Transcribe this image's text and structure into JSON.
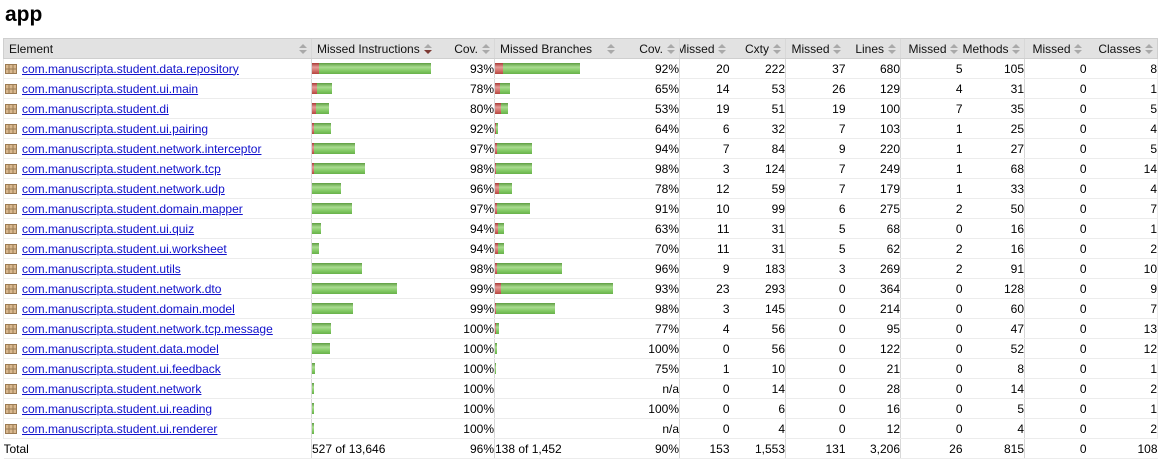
{
  "title": "app",
  "colors": {
    "bar_green": "#7cc95e",
    "bar_red": "#c04a43",
    "link_blue": "#1111cc",
    "header_bg": "#e2e2e2",
    "sort_active_arrow": "#7d3a34"
  },
  "icons": {
    "package": "package-grid-icon",
    "sort": "sort-arrows-icon"
  },
  "table": {
    "headers": [
      {
        "label": "Element",
        "sort": "both"
      },
      {
        "label": "Missed Instructions",
        "sort": "down-active"
      },
      {
        "label": "Cov.",
        "sort": "both"
      },
      {
        "label": "Missed Branches",
        "sort": "both"
      },
      {
        "label": "Cov.",
        "sort": "both"
      },
      {
        "label": "Missed",
        "sort": "both"
      },
      {
        "label": "Cxty",
        "sort": "both"
      },
      {
        "label": "Missed",
        "sort": "both"
      },
      {
        "label": "Lines",
        "sort": "both"
      },
      {
        "label": "Missed",
        "sort": "both"
      },
      {
        "label": "Methods",
        "sort": "both"
      },
      {
        "label": "Missed",
        "sort": "both"
      },
      {
        "label": "Classes",
        "sort": "both"
      }
    ],
    "rows": [
      {
        "name": "com.manuscripta.student.data.repository",
        "instr_bar": {
          "red": 7,
          "green": 112
        },
        "instr_cov": "93%",
        "branch_bar": {
          "red": 8,
          "green": 77
        },
        "branch_cov": "92%",
        "missed_cxty": "20",
        "cxty": "222",
        "missed_lines": "37",
        "lines": "680",
        "missed_methods": "5",
        "methods": "105",
        "missed_classes": "0",
        "classes": "8"
      },
      {
        "name": "com.manuscripta.student.ui.main",
        "instr_bar": {
          "red": 5,
          "green": 15
        },
        "instr_cov": "78%",
        "branch_bar": {
          "red": 5,
          "green": 10
        },
        "branch_cov": "65%",
        "missed_cxty": "14",
        "cxty": "53",
        "missed_lines": "26",
        "lines": "129",
        "missed_methods": "4",
        "methods": "31",
        "missed_classes": "0",
        "classes": "1"
      },
      {
        "name": "com.manuscripta.student.di",
        "instr_bar": {
          "red": 4,
          "green": 13
        },
        "instr_cov": "80%",
        "branch_bar": {
          "red": 6,
          "green": 7
        },
        "branch_cov": "53%",
        "missed_cxty": "19",
        "cxty": "51",
        "missed_lines": "19",
        "lines": "100",
        "missed_methods": "7",
        "methods": "35",
        "missed_classes": "0",
        "classes": "5"
      },
      {
        "name": "com.manuscripta.student.ui.pairing",
        "instr_bar": {
          "red": 2,
          "green": 17
        },
        "instr_cov": "92%",
        "branch_bar": {
          "red": 1,
          "green": 2
        },
        "branch_cov": "64%",
        "missed_cxty": "6",
        "cxty": "32",
        "missed_lines": "7",
        "lines": "103",
        "missed_methods": "1",
        "methods": "25",
        "missed_classes": "0",
        "classes": "4"
      },
      {
        "name": "com.manuscripta.student.network.interceptor",
        "instr_bar": {
          "red": 2,
          "green": 41
        },
        "instr_cov": "97%",
        "branch_bar": {
          "red": 2,
          "green": 35
        },
        "branch_cov": "94%",
        "missed_cxty": "7",
        "cxty": "84",
        "missed_lines": "9",
        "lines": "220",
        "missed_methods": "1",
        "methods": "27",
        "missed_classes": "0",
        "classes": "5"
      },
      {
        "name": "com.manuscripta.student.network.tcp",
        "instr_bar": {
          "red": 2,
          "green": 51
        },
        "instr_cov": "98%",
        "branch_bar": {
          "red": 1,
          "green": 36
        },
        "branch_cov": "98%",
        "missed_cxty": "3",
        "cxty": "124",
        "missed_lines": "7",
        "lines": "249",
        "missed_methods": "1",
        "methods": "68",
        "missed_classes": "0",
        "classes": "14"
      },
      {
        "name": "com.manuscripta.student.network.udp",
        "instr_bar": {
          "red": 0,
          "green": 29
        },
        "instr_cov": "96%",
        "branch_bar": {
          "red": 4,
          "green": 13
        },
        "branch_cov": "78%",
        "missed_cxty": "12",
        "cxty": "59",
        "missed_lines": "7",
        "lines": "179",
        "missed_methods": "1",
        "methods": "33",
        "missed_classes": "0",
        "classes": "4"
      },
      {
        "name": "com.manuscripta.student.domain.mapper",
        "instr_bar": {
          "red": 0,
          "green": 40
        },
        "instr_cov": "97%",
        "branch_bar": {
          "red": 2,
          "green": 33
        },
        "branch_cov": "91%",
        "missed_cxty": "10",
        "cxty": "99",
        "missed_lines": "6",
        "lines": "275",
        "missed_methods": "2",
        "methods": "50",
        "missed_classes": "0",
        "classes": "7"
      },
      {
        "name": "com.manuscripta.student.ui.quiz",
        "instr_bar": {
          "red": 0,
          "green": 9
        },
        "instr_cov": "94%",
        "branch_bar": {
          "red": 3,
          "green": 6
        },
        "branch_cov": "63%",
        "missed_cxty": "11",
        "cxty": "31",
        "missed_lines": "5",
        "lines": "68",
        "missed_methods": "0",
        "methods": "16",
        "missed_classes": "0",
        "classes": "1"
      },
      {
        "name": "com.manuscripta.student.ui.worksheet",
        "instr_bar": {
          "red": 0,
          "green": 7
        },
        "instr_cov": "94%",
        "branch_bar": {
          "red": 3,
          "green": 6
        },
        "branch_cov": "70%",
        "missed_cxty": "11",
        "cxty": "31",
        "missed_lines": "5",
        "lines": "62",
        "missed_methods": "2",
        "methods": "16",
        "missed_classes": "0",
        "classes": "2"
      },
      {
        "name": "com.manuscripta.student.utils",
        "instr_bar": {
          "red": 0,
          "green": 50
        },
        "instr_cov": "98%",
        "branch_bar": {
          "red": 2,
          "green": 65
        },
        "branch_cov": "96%",
        "missed_cxty": "9",
        "cxty": "183",
        "missed_lines": "3",
        "lines": "269",
        "missed_methods": "2",
        "methods": "91",
        "missed_classes": "0",
        "classes": "10"
      },
      {
        "name": "com.manuscripta.student.network.dto",
        "instr_bar": {
          "red": 0,
          "green": 85
        },
        "instr_cov": "99%",
        "branch_bar": {
          "red": 6,
          "green": 112
        },
        "branch_cov": "93%",
        "missed_cxty": "23",
        "cxty": "293",
        "missed_lines": "0",
        "lines": "364",
        "missed_methods": "0",
        "methods": "128",
        "missed_classes": "0",
        "classes": "9"
      },
      {
        "name": "com.manuscripta.student.domain.model",
        "instr_bar": {
          "red": 0,
          "green": 41
        },
        "instr_cov": "99%",
        "branch_bar": {
          "red": 1,
          "green": 59
        },
        "branch_cov": "98%",
        "missed_cxty": "3",
        "cxty": "145",
        "missed_lines": "0",
        "lines": "214",
        "missed_methods": "0",
        "methods": "60",
        "missed_classes": "0",
        "classes": "7"
      },
      {
        "name": "com.manuscripta.student.network.tcp.message",
        "instr_bar": {
          "red": 0,
          "green": 19
        },
        "instr_cov": "100%",
        "branch_bar": {
          "red": 1,
          "green": 3
        },
        "branch_cov": "77%",
        "missed_cxty": "4",
        "cxty": "56",
        "missed_lines": "0",
        "lines": "95",
        "missed_methods": "0",
        "methods": "47",
        "missed_classes": "0",
        "classes": "13"
      },
      {
        "name": "com.manuscripta.student.data.model",
        "instr_bar": {
          "red": 0,
          "green": 18
        },
        "instr_cov": "100%",
        "branch_bar": {
          "red": 0,
          "green": 2
        },
        "branch_cov": "100%",
        "missed_cxty": "0",
        "cxty": "56",
        "missed_lines": "0",
        "lines": "122",
        "missed_methods": "0",
        "methods": "52",
        "missed_classes": "0",
        "classes": "12"
      },
      {
        "name": "com.manuscripta.student.ui.feedback",
        "instr_bar": {
          "red": 0,
          "green": 3
        },
        "instr_cov": "100%",
        "branch_bar": {
          "red": 0,
          "green": 1
        },
        "branch_cov": "75%",
        "missed_cxty": "1",
        "cxty": "10",
        "missed_lines": "0",
        "lines": "21",
        "missed_methods": "0",
        "methods": "8",
        "missed_classes": "0",
        "classes": "1"
      },
      {
        "name": "com.manuscripta.student.network",
        "instr_bar": {
          "red": 0,
          "green": 2
        },
        "instr_cov": "100%",
        "branch_bar": {
          "red": 0,
          "green": 0
        },
        "branch_cov": "n/a",
        "missed_cxty": "0",
        "cxty": "14",
        "missed_lines": "0",
        "lines": "28",
        "missed_methods": "0",
        "methods": "14",
        "missed_classes": "0",
        "classes": "2"
      },
      {
        "name": "com.manuscripta.student.ui.reading",
        "instr_bar": {
          "red": 0,
          "green": 2
        },
        "instr_cov": "100%",
        "branch_bar": {
          "red": 0,
          "green": 0
        },
        "branch_cov": "100%",
        "missed_cxty": "0",
        "cxty": "6",
        "missed_lines": "0",
        "lines": "16",
        "missed_methods": "0",
        "methods": "5",
        "missed_classes": "0",
        "classes": "1"
      },
      {
        "name": "com.manuscripta.student.ui.renderer",
        "instr_bar": {
          "red": 0,
          "green": 2
        },
        "instr_cov": "100%",
        "branch_bar": {
          "red": 0,
          "green": 0
        },
        "branch_cov": "n/a",
        "missed_cxty": "0",
        "cxty": "4",
        "missed_lines": "0",
        "lines": "12",
        "missed_methods": "0",
        "methods": "4",
        "missed_classes": "0",
        "classes": "2"
      }
    ],
    "total": {
      "label": "Total",
      "instructions": "527 of 13,646",
      "instr_cov": "96%",
      "branches": "138 of 1,452",
      "branch_cov": "90%",
      "missed_cxty": "153",
      "cxty": "1,553",
      "missed_lines": "131",
      "lines": "3,206",
      "missed_methods": "26",
      "methods": "815",
      "missed_classes": "0",
      "classes": "108"
    }
  }
}
